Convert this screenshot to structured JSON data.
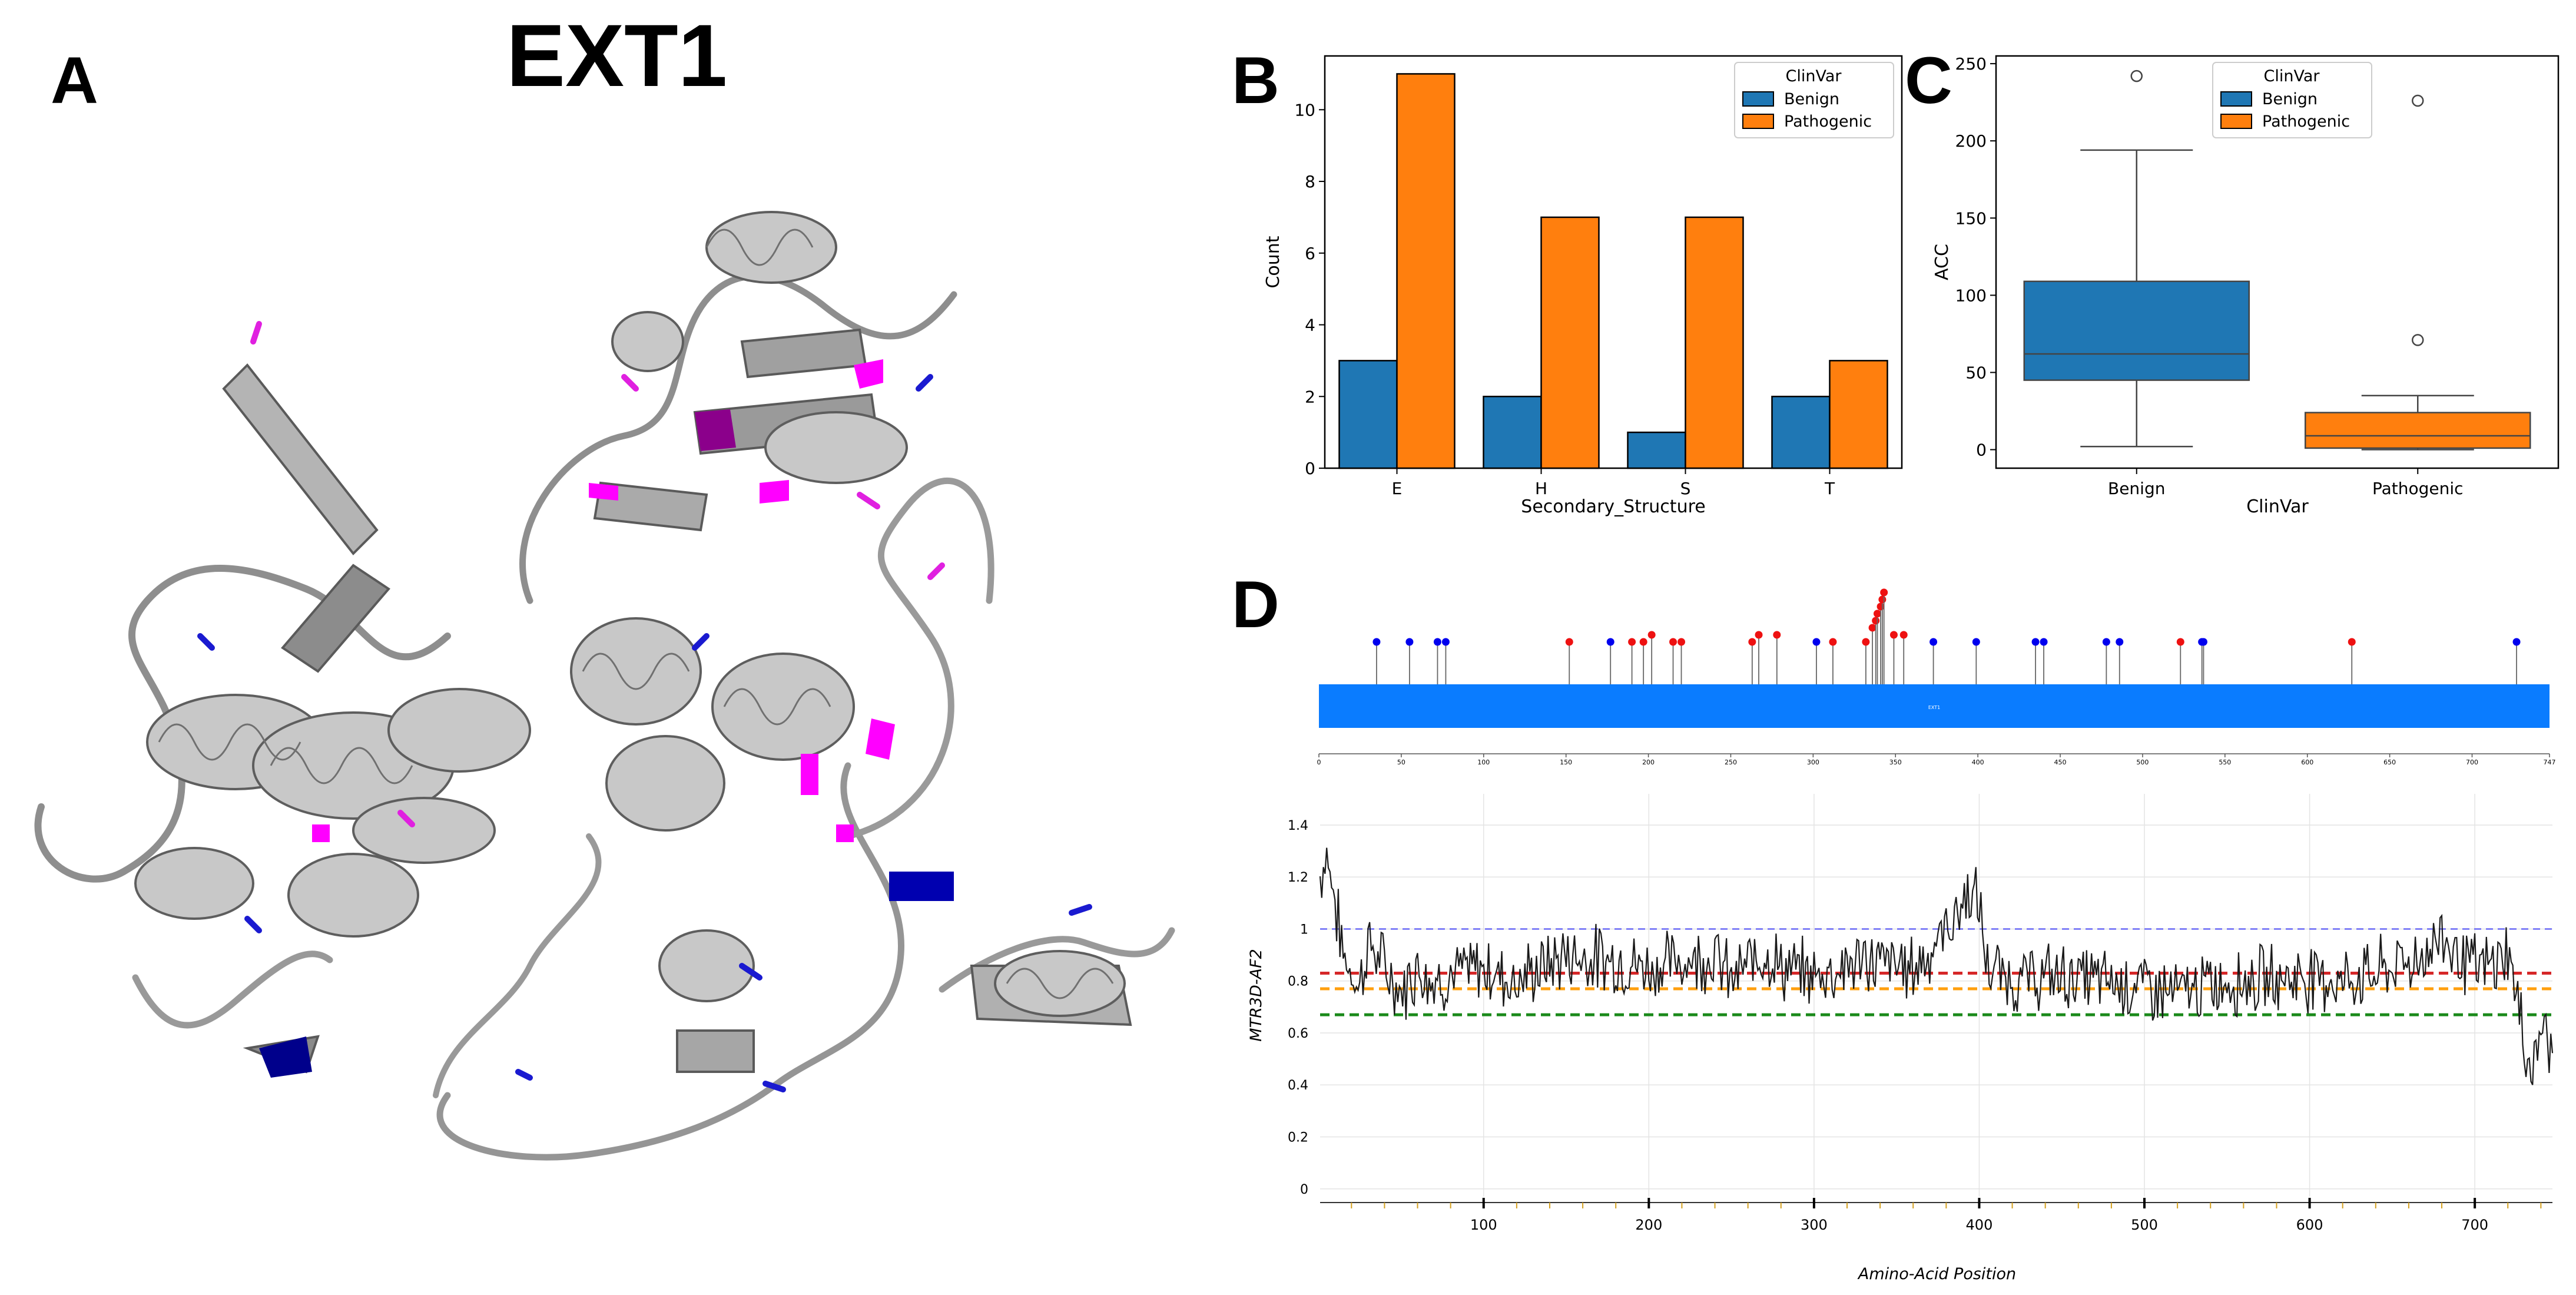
{
  "figure": {
    "title": "EXT1",
    "panels": [
      "A",
      "B",
      "C",
      "D"
    ]
  },
  "colors": {
    "benign": "#1f77b4",
    "pathogenic": "#ff7f0e",
    "lollipop_benign": "#0000ee",
    "lollipop_pathogenic": "#ee1111",
    "domain_bar": "#0a7cff",
    "ref_blue": "#6a6af5",
    "ref_red": "#d62728",
    "ref_orange": "#ff9f0e",
    "ref_green": "#1a8a1a"
  },
  "chart_data": [
    {
      "panel": "B",
      "type": "bar",
      "categories": [
        "E",
        "H",
        "S",
        "T"
      ],
      "series": [
        {
          "name": "Benign",
          "values": [
            3,
            2,
            1,
            2
          ]
        },
        {
          "name": "Pathogenic",
          "values": [
            11,
            7,
            7,
            3
          ]
        }
      ],
      "xlabel": "Secondary_Structure",
      "ylabel": "Count",
      "ylim": [
        0,
        11.5
      ],
      "yticks": [
        "0",
        "2",
        "4",
        "6",
        "8",
        "10"
      ],
      "legend": {
        "title": "ClinVar",
        "placement": "top-right",
        "entries": [
          "Benign",
          "Pathogenic"
        ]
      }
    },
    {
      "panel": "C",
      "type": "box",
      "categories": [
        "Benign",
        "Pathogenic"
      ],
      "boxes": [
        {
          "name": "Benign",
          "q1": 45,
          "median": 62,
          "q3": 109,
          "whisker_low": 2,
          "whisker_high": 194,
          "outliers": [
            242
          ]
        },
        {
          "name": "Pathogenic",
          "q1": 1,
          "median": 9,
          "q3": 24,
          "whisker_low": 0,
          "whisker_high": 35,
          "outliers": [
            71,
            226
          ]
        }
      ],
      "xlabel": "ClinVar",
      "ylabel": "ACC",
      "ylim": [
        -12,
        255
      ],
      "yticks": [
        "0",
        "50",
        "100",
        "150",
        "200",
        "250"
      ],
      "legend": {
        "title": "ClinVar",
        "placement": "top-center",
        "entries": [
          "Benign",
          "Pathogenic"
        ]
      }
    },
    {
      "panel": "D-lollipop",
      "type": "lollipop",
      "xlim": [
        0,
        747
      ],
      "xticks": [
        "0",
        "50",
        "100",
        "150",
        "200",
        "250",
        "300",
        "350",
        "400",
        "450",
        "500",
        "550",
        "600",
        "650",
        "700",
        "747"
      ],
      "domain_label": "EXT1",
      "benign_positions": [
        35,
        55,
        72,
        77,
        177,
        302,
        373,
        399,
        435,
        440,
        478,
        486,
        536,
        537,
        727
      ],
      "pathogenic_positions": [
        152,
        190,
        197,
        202,
        215,
        220,
        263,
        267,
        278,
        312,
        332,
        336,
        338,
        339,
        341,
        342,
        343,
        349,
        355,
        523,
        627
      ],
      "stacked_heights": [
        0,
        0,
        0,
        1,
        0,
        0,
        0,
        1,
        1,
        0,
        0,
        2,
        3,
        4,
        5,
        6,
        7,
        1,
        1,
        0,
        0
      ]
    },
    {
      "panel": "D-line",
      "type": "line",
      "xlabel": "Amino-Acid Position",
      "ylabel": "MTR3D-AF2",
      "xlim": [
        1,
        747
      ],
      "ylim": [
        -0.03,
        1.52
      ],
      "xticks": [
        "100",
        "200",
        "300",
        "400",
        "500",
        "600",
        "700"
      ],
      "yticks": [
        "0",
        "0.2",
        "0.4",
        "0.6",
        "0.8",
        "1",
        "1.2",
        "1.4"
      ],
      "reference_lines": [
        {
          "name": "blue",
          "value": 1.0
        },
        {
          "name": "red",
          "value": 0.83
        },
        {
          "name": "orange",
          "value": 0.77
        },
        {
          "name": "green",
          "value": 0.67
        }
      ],
      "anchors": {
        "x": [
          1,
          5,
          15,
          25,
          30,
          40,
          50,
          60,
          70,
          80,
          100,
          120,
          150,
          180,
          200,
          220,
          240,
          250,
          270,
          280,
          300,
          330,
          360,
          375,
          385,
          395,
          400,
          405,
          420,
          450,
          500,
          520,
          550,
          600,
          620,
          650,
          670,
          680,
          690,
          700,
          710,
          720,
          725,
          730,
          735,
          740,
          747
        ],
        "y": [
          1.2,
          1.3,
          0.9,
          0.78,
          0.95,
          0.85,
          0.75,
          0.86,
          0.8,
          0.82,
          0.85,
          0.8,
          0.9,
          0.88,
          0.85,
          0.88,
          0.9,
          0.8,
          0.92,
          0.85,
          0.82,
          0.88,
          0.85,
          0.95,
          1.05,
          1.15,
          1.08,
          0.85,
          0.8,
          0.82,
          0.78,
          0.75,
          0.8,
          0.82,
          0.8,
          0.85,
          0.9,
          0.98,
          0.9,
          0.85,
          0.85,
          0.92,
          0.75,
          0.55,
          0.45,
          0.62,
          0.55
        ]
      }
    }
  ]
}
